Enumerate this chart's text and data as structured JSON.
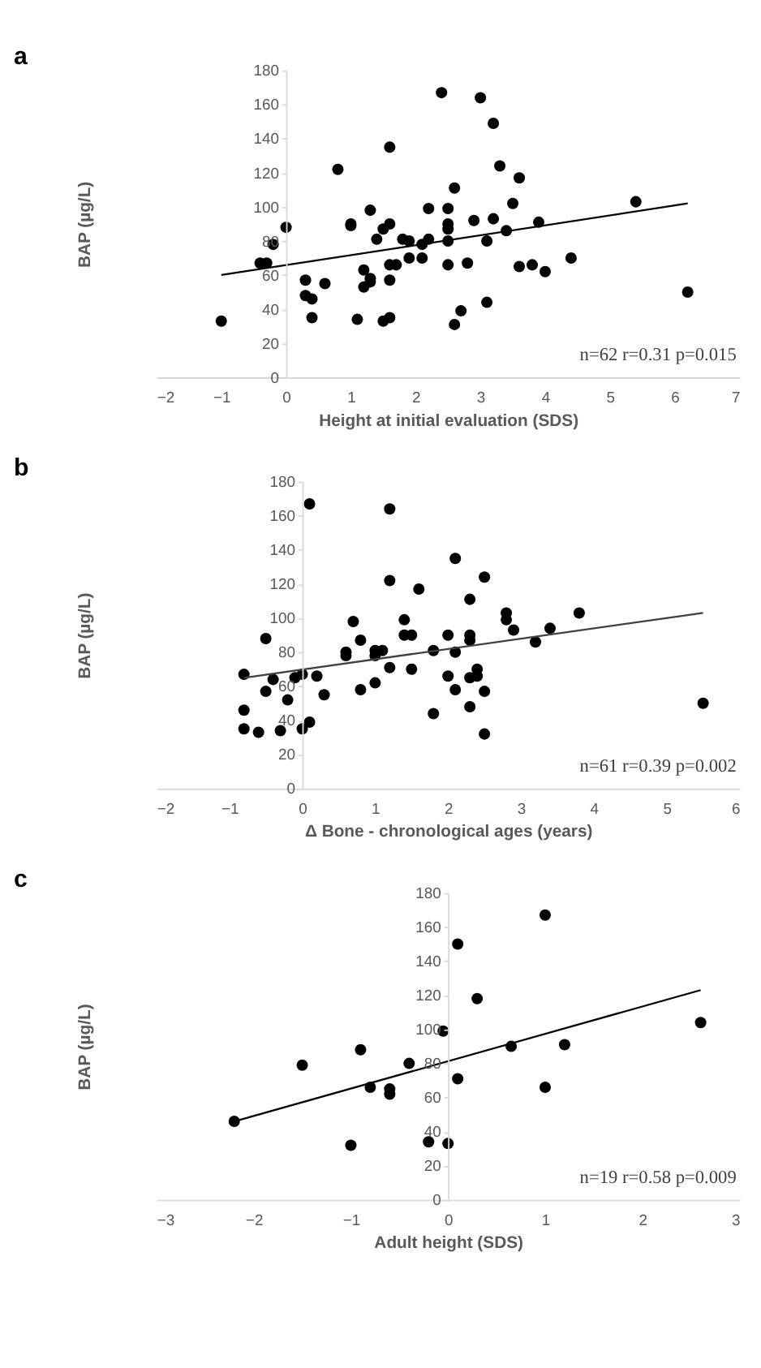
{
  "chart_data": [
    {
      "type": "scatter",
      "title": "a",
      "xlabel": "Height at initial evaluation (SDS)",
      "ylabel": "BAP (µg/L)",
      "xlim": [
        -2,
        7
      ],
      "xticks": [
        -2,
        -1,
        0,
        1,
        2,
        3,
        4,
        5,
        6,
        7
      ],
      "ylim": [
        0,
        180
      ],
      "yticks": [
        0,
        20,
        40,
        60,
        80,
        100,
        120,
        140,
        160,
        180
      ],
      "grid": false,
      "annotations": [
        "n=62 r=0.31 p=0.015"
      ],
      "series": [
        {
          "marker": "circle",
          "color": "#000000",
          "x": [
            -1,
            -0.4,
            -0.3,
            -0.2,
            0,
            0.3,
            0.3,
            0.4,
            0.4,
            0.6,
            0.8,
            1.0,
            1.0,
            1.1,
            1.2,
            1.2,
            1.3,
            1.3,
            1.3,
            1.4,
            1.5,
            1.5,
            1.6,
            1.6,
            1.6,
            1.6,
            1.6,
            1.7,
            1.8,
            1.9,
            1.9,
            2.1,
            2.1,
            2.2,
            2.2,
            2.4,
            2.5,
            2.5,
            2.5,
            2.5,
            2.5,
            2.6,
            2.6,
            2.7,
            2.8,
            2.9,
            3.0,
            3.1,
            3.1,
            3.2,
            3.2,
            3.3,
            3.4,
            3.5,
            3.6,
            3.6,
            3.8,
            3.9,
            4.0,
            4.4,
            5.4,
            6.2
          ],
          "values": [
            33,
            67,
            67,
            78,
            88,
            57,
            48,
            46,
            35,
            55,
            122,
            90,
            89,
            34,
            63,
            53,
            98,
            58,
            56,
            81,
            87,
            33,
            135,
            90,
            66,
            57,
            35,
            66,
            81,
            80,
            70,
            78,
            70,
            99,
            81,
            167,
            99,
            90,
            87,
            80,
            66,
            111,
            31,
            39,
            67,
            92,
            164,
            80,
            44,
            149,
            93,
            124,
            86,
            102,
            117,
            65,
            66,
            91,
            62,
            70,
            103,
            50
          ]
        },
        {
          "type": "line",
          "marker": "none",
          "color": "#000000",
          "x": [
            -1,
            6.2
          ],
          "values": [
            60,
            102
          ]
        }
      ]
    },
    {
      "type": "scatter",
      "title": "b",
      "xlabel": "Δ Bone - chronological ages (years)",
      "ylabel": "BAP (µg/L)",
      "xlim": [
        -2,
        6
      ],
      "xticks": [
        -2,
        -1,
        0,
        1,
        2,
        3,
        4,
        5,
        6
      ],
      "ylim": [
        0,
        180
      ],
      "yticks": [
        0,
        20,
        40,
        60,
        80,
        100,
        120,
        140,
        160,
        180
      ],
      "grid": false,
      "annotations": [
        "n=61   r=0.39  p=0.002"
      ],
      "series": [
        {
          "marker": "circle",
          "color": "#000000",
          "x": [
            -0.8,
            -0.8,
            -0.8,
            -0.6,
            -0.5,
            -0.5,
            -0.4,
            -0.3,
            -0.2,
            -0.1,
            0,
            0,
            0.1,
            0.1,
            0.2,
            0.3,
            0.6,
            0.6,
            0.7,
            0.8,
            0.8,
            1.0,
            1.0,
            1.0,
            1.1,
            1.2,
            1.2,
            1.2,
            1.4,
            1.4,
            1.5,
            1.5,
            1.6,
            1.8,
            1.8,
            2.0,
            2.0,
            2.1,
            2.1,
            2.1,
            2.3,
            2.3,
            2.3,
            2.3,
            2.3,
            2.4,
            2.4,
            2.5,
            2.5,
            2.5,
            2.8,
            2.8,
            2.9,
            3.2,
            3.4,
            3.8,
            5.5
          ],
          "values": [
            67,
            46,
            35,
            33,
            88,
            57,
            64,
            34,
            52,
            65,
            67,
            35,
            167,
            39,
            66,
            55,
            80,
            78,
            98,
            87,
            58,
            81,
            78,
            62,
            81,
            164,
            122,
            71,
            99,
            90,
            90,
            70,
            117,
            81,
            44,
            90,
            66,
            135,
            80,
            58,
            111,
            90,
            87,
            65,
            48,
            70,
            66,
            124,
            57,
            32,
            103,
            99,
            93,
            86,
            94,
            103,
            50
          ]
        },
        {
          "type": "line",
          "marker": "none",
          "color": "#404040",
          "x": [
            -0.8,
            5.5
          ],
          "values": [
            65,
            103
          ]
        }
      ]
    },
    {
      "type": "scatter",
      "title": "c",
      "xlabel": "Adult height (SDS)",
      "ylabel": "BAP (µg/L)",
      "xlim": [
        -3,
        3
      ],
      "xticks": [
        -3,
        -2,
        -1,
        0,
        1,
        2,
        3
      ],
      "ylim": [
        0,
        180
      ],
      "yticks": [
        0,
        20,
        40,
        60,
        80,
        100,
        120,
        140,
        160,
        180
      ],
      "grid": false,
      "annotations": [
        "n=19   r=0.58  p=0.009"
      ],
      "series": [
        {
          "marker": "circle",
          "color": "#000000",
          "x": [
            -2.2,
            -1.5,
            -1.0,
            -0.9,
            -0.8,
            -0.6,
            -0.6,
            -0.4,
            -0.2,
            -0.05,
            0,
            0.1,
            0.1,
            0.3,
            0.65,
            1.0,
            1.0,
            1.2,
            2.6
          ],
          "values": [
            46,
            79,
            32,
            88,
            66,
            65,
            62,
            80,
            34,
            99,
            33,
            150,
            71,
            118,
            90,
            167,
            66,
            91,
            104
          ]
        },
        {
          "type": "line",
          "marker": "none",
          "color": "#000000",
          "x": [
            -2.2,
            2.6
          ],
          "values": [
            46,
            123
          ]
        }
      ]
    }
  ]
}
